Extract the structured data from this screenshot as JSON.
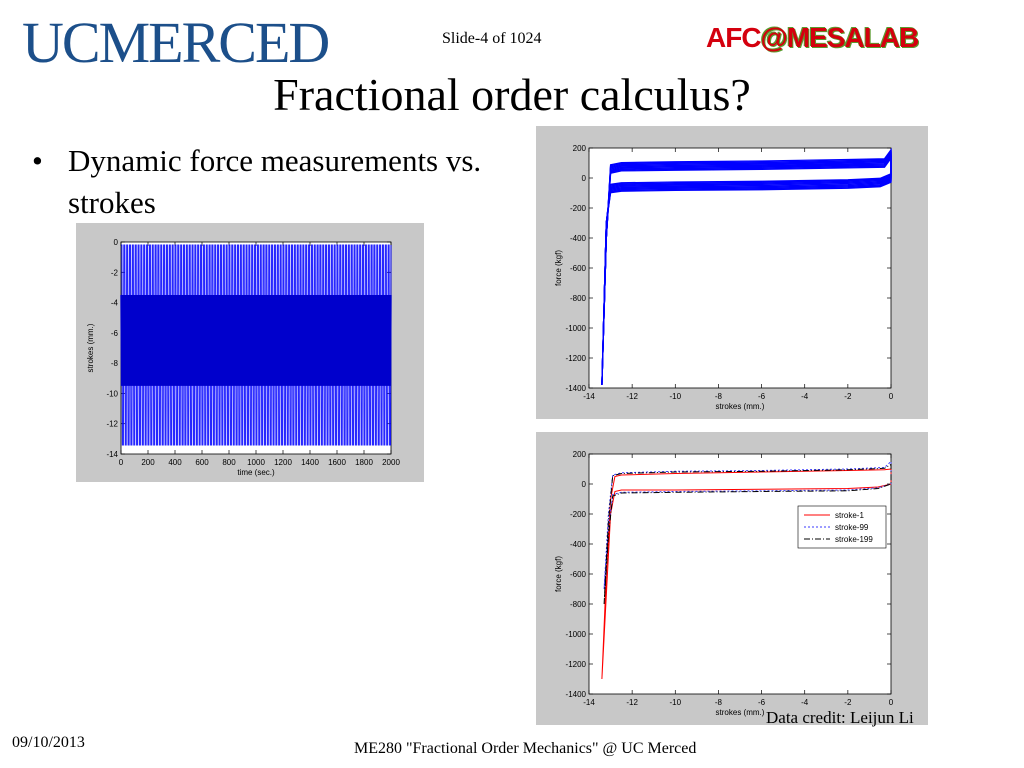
{
  "header": {
    "logo_text": "UCMERCED",
    "slide_number": "Slide-4 of 1024",
    "lab_afc": "AFC",
    "lab_mesa": "@MESALAB"
  },
  "title": "Fractional order calculus?",
  "bullet": "Dynamic force measurements vs. strokes",
  "credit": "Data credit: Leijun Li",
  "footer": {
    "date": "09/10/2013",
    "course": "ME280 \"Fractional Order Mechanics\" @ UC Merced"
  },
  "colors": {
    "logo": "#1c4f8a",
    "lab_red": "#d4000e",
    "lab_green": "#5a9b2e",
    "series_blue": "#0000ff"
  },
  "chart_data": [
    {
      "type": "line",
      "title": "",
      "xlabel": "time (sec.)",
      "ylabel": "strokes (mm.)",
      "xlim": [
        0,
        2000
      ],
      "ylim": [
        -14,
        0
      ],
      "xticks": [
        0,
        200,
        400,
        600,
        800,
        1000,
        1200,
        1400,
        1600,
        1800,
        2000
      ],
      "yticks": [
        0,
        -2,
        -4,
        -6,
        -8,
        -10,
        -12,
        -14
      ],
      "series": [
        {
          "color": "#0000ff",
          "oscillation": {
            "min": -13.4,
            "max": -0.2,
            "cycles": 95
          }
        }
      ]
    },
    {
      "type": "line",
      "title": "",
      "xlabel": "strokes (mm.)",
      "ylabel": "force (kgf)",
      "xlim": [
        -14,
        0
      ],
      "ylim": [
        -1400,
        200
      ],
      "xticks": [
        -14,
        -12,
        -10,
        -8,
        -6,
        -4,
        -2,
        0
      ],
      "yticks": [
        200,
        0,
        -200,
        -400,
        -600,
        -800,
        -1000,
        -1200,
        -1400
      ],
      "series": [
        {
          "color": "#0000ff",
          "upper": [
            [
              -13.4,
              -1380
            ],
            [
              -13.2,
              -400
            ],
            [
              -13.0,
              60
            ],
            [
              -12.5,
              75
            ],
            [
              -10,
              80
            ],
            [
              -6,
              85
            ],
            [
              -2,
              95
            ],
            [
              -0.3,
              100
            ],
            [
              0,
              160
            ]
          ],
          "lower": [
            [
              0,
              0
            ],
            [
              -0.5,
              -30
            ],
            [
              -2,
              -40
            ],
            [
              -6,
              -50
            ],
            [
              -10,
              -55
            ],
            [
              -12.5,
              -60
            ],
            [
              -13.0,
              -70
            ],
            [
              -13.2,
              -300
            ],
            [
              -13.4,
              -1380
            ]
          ]
        }
      ]
    },
    {
      "type": "line",
      "title": "",
      "xlabel": "strokes (mm.)",
      "ylabel": "force (kgf)",
      "xlim": [
        -14,
        0
      ],
      "ylim": [
        -1400,
        200
      ],
      "xticks": [
        -14,
        -12,
        -10,
        -8,
        -6,
        -4,
        -2,
        0
      ],
      "yticks": [
        200,
        0,
        -200,
        -400,
        -600,
        -800,
        -1000,
        -1200,
        -1400
      ],
      "legend_position": "right",
      "series": [
        {
          "name": "stroke-1",
          "color": "#ff0000",
          "dash": "solid",
          "points": [
            [
              -13.4,
              -1300
            ],
            [
              -13.2,
              -600
            ],
            [
              -13.0,
              -100
            ],
            [
              -12.8,
              50
            ],
            [
              -12.5,
              60
            ],
            [
              -10,
              70
            ],
            [
              -6,
              80
            ],
            [
              -2,
              90
            ],
            [
              -0.3,
              95
            ],
            [
              0,
              100
            ],
            [
              0,
              0
            ],
            [
              -0.6,
              -20
            ],
            [
              -2,
              -30
            ],
            [
              -6,
              -35
            ],
            [
              -10,
              -40
            ],
            [
              -12.5,
              -40
            ],
            [
              -12.8,
              -50
            ],
            [
              -13.0,
              -200
            ],
            [
              -13.4,
              -1300
            ]
          ]
        },
        {
          "name": "stroke-99",
          "color": "#3a3aff",
          "dash": "dotted",
          "points": [
            [
              -13.3,
              -700
            ],
            [
              -13.1,
              -200
            ],
            [
              -12.9,
              60
            ],
            [
              -12.5,
              75
            ],
            [
              -10,
              85
            ],
            [
              -6,
              90
            ],
            [
              -2,
              100
            ],
            [
              -0.3,
              110
            ],
            [
              0,
              150
            ],
            [
              0,
              0
            ],
            [
              -0.6,
              -25
            ],
            [
              -2,
              -40
            ],
            [
              -6,
              -45
            ],
            [
              -10,
              -50
            ],
            [
              -12.5,
              -55
            ],
            [
              -12.9,
              -70
            ],
            [
              -13.1,
              -300
            ],
            [
              -13.3,
              -700
            ]
          ]
        },
        {
          "name": "stroke-199",
          "color": "#000000",
          "dash": "dashdot",
          "points": [
            [
              -13.3,
              -800
            ],
            [
              -13.1,
              -250
            ],
            [
              -12.9,
              55
            ],
            [
              -12.5,
              70
            ],
            [
              -10,
              80
            ],
            [
              -6,
              85
            ],
            [
              -2,
              95
            ],
            [
              -0.3,
              105
            ],
            [
              0,
              130
            ],
            [
              0,
              0
            ],
            [
              -0.6,
              -30
            ],
            [
              -2,
              -45
            ],
            [
              -6,
              -50
            ],
            [
              -10,
              -55
            ],
            [
              -12.5,
              -60
            ],
            [
              -12.9,
              -80
            ],
            [
              -13.1,
              -350
            ],
            [
              -13.3,
              -800
            ]
          ]
        }
      ]
    }
  ]
}
